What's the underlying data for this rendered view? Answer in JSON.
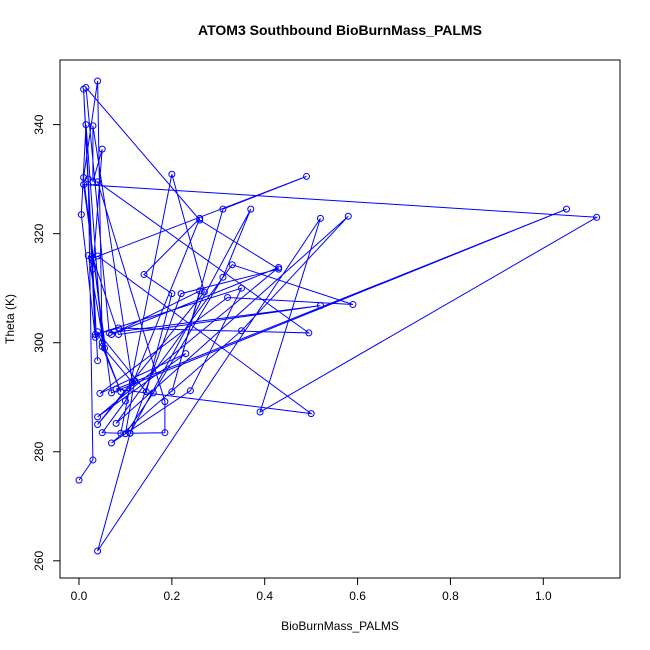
{
  "chart_data": {
    "type": "line",
    "title": "ATOM3 Southbound BioBurnMass_PALMS",
    "xlabel": "BioBurnMass_PALMS",
    "ylabel": "Theta (K)",
    "xlim": [
      0,
      1.12
    ],
    "ylim": [
      261.8,
      348
    ],
    "x_ticks": [
      0.0,
      0.2,
      0.4,
      0.6,
      0.8,
      1.0
    ],
    "x_tick_labels": [
      "0.0",
      "0.2",
      "0.4",
      "0.6",
      "0.8",
      "1.0"
    ],
    "y_ticks": [
      260,
      280,
      300,
      320,
      340
    ],
    "y_tick_labels": [
      "260",
      "280",
      "300",
      "320",
      "340"
    ],
    "series_color": "#0000ff",
    "markers": "open-circle",
    "grid": false,
    "series": [
      {
        "x": [
          0.0,
          0.03,
          0.02,
          0.04,
          0.01,
          0.035,
          0.005,
          0.015,
          0.05,
          0.04,
          0.01,
          0.055,
          0.02,
          0.03,
          0.05,
          0.03,
          0.03,
          0.115,
          0.05,
          0.09,
          0.04,
          0.145,
          0.2,
          0.14,
          0.26,
          0.1,
          0.05,
          0.09,
          0.2,
          0.27,
          0.04,
          0.12,
          0.1,
          0.16,
          0.31,
          0.37,
          0.11,
          0.22,
          0.43,
          0.26,
          0.015,
          0.065,
          0.52,
          0.085,
          0.03,
          0.49,
          0.31,
          0.2,
          0.26,
          0.07,
          0.43,
          0.04,
          0.23,
          0.045,
          0.32,
          0.59,
          0.33,
          0.08,
          0.58,
          0.35,
          0.07,
          0.24,
          0.35,
          0.035,
          0.085,
          0.495,
          0.04,
          0.185,
          0.185,
          0.11,
          0.04,
          0.52,
          0.39,
          1.115,
          0.01,
          0.07,
          1.05,
          0.08,
          0.5,
          0.04
        ],
        "y": [
          274.8,
          278.5,
          330.0,
          296.7,
          346.5,
          301.0,
          323.5,
          340.0,
          300.0,
          348.0,
          330.3,
          299.0,
          316.0,
          313.5,
          335.5,
          329.5,
          339.8,
          292.7,
          299.3,
          291.0,
          302.0,
          291.0,
          309.0,
          312.5,
          322.8,
          289.3,
          283.5,
          283.4,
          330.9,
          309.3,
          285.0,
          293.0,
          283.3,
          290.8,
          312.0,
          324.5,
          283.4,
          309.0,
          313.5,
          322.5,
          346.8,
          301.8,
          306.8,
          301.5,
          315.5,
          330.5,
          324.5,
          291.0,
          309.5,
          301.5,
          313.8,
          286.4,
          298.0,
          290.7,
          308.3,
          307.0,
          314.3,
          285.2,
          323.2,
          302.2,
          281.6,
          291.2,
          310.0,
          301.5,
          302.7,
          301.8,
          329.5,
          289.2,
          283.5,
          283.4,
          261.8,
          322.8,
          287.3,
          323.0,
          329.0,
          290.8,
          324.5,
          291.5,
          287.0,
          315.9
        ]
      }
    ]
  }
}
